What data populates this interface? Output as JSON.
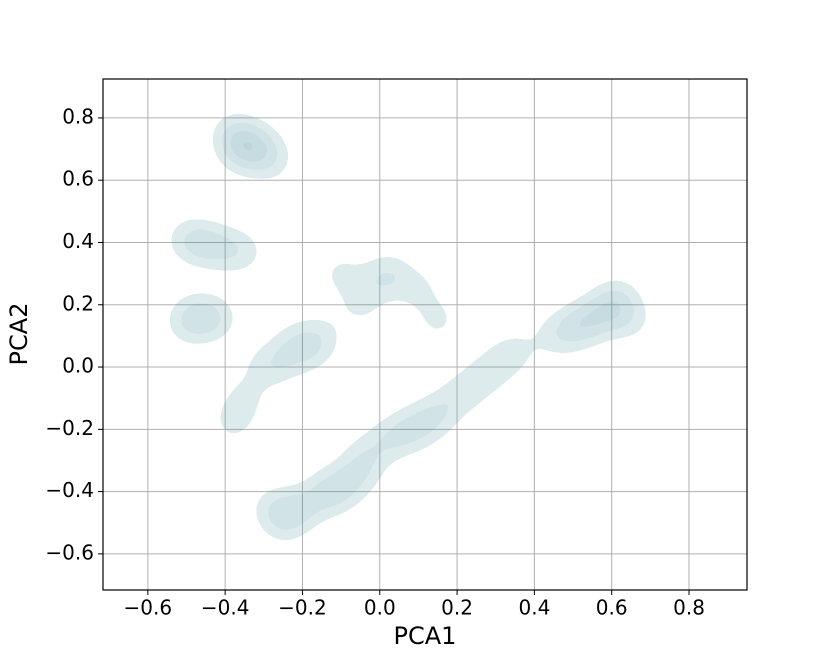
{
  "chart_data": {
    "type": "kde",
    "x_label": "PCA1",
    "y_label": "PCA2",
    "color": "#3f8a98",
    "grid": true,
    "xlim": [
      -0.716,
      0.95
    ],
    "ylim": [
      -0.716,
      0.925
    ],
    "xticks": [
      {
        "value": -0.6,
        "label": "−0.6"
      },
      {
        "value": -0.4,
        "label": "−0.4"
      },
      {
        "value": -0.2,
        "label": "−0.2"
      },
      {
        "value": 0,
        "label": "0.0"
      },
      0.2,
      0.4,
      0.6,
      0.8
    ],
    "yticks": [
      {
        "value": -0.6,
        "label": "−0.6"
      },
      {
        "value": -0.4,
        "label": "−0.4"
      },
      {
        "value": -0.2,
        "label": "−0.2"
      },
      {
        "value": 0,
        "label": "0.0"
      },
      0.2,
      0.4,
      0.6,
      0.8
    ],
    "x": [
      -0.37,
      -0.34,
      -0.33,
      -0.3,
      -0.38,
      -0.28,
      -0.36,
      -0.47,
      -0.44,
      -0.5,
      -0.4,
      -0.35,
      -0.48,
      -0.45,
      -0.42,
      -0.5,
      -0.22,
      -0.18,
      -0.15,
      -0.25,
      -0.35,
      -0.38,
      -0.3,
      0.0,
      0.03,
      0.1,
      -0.05,
      0.15,
      -0.1,
      0.05,
      0.08,
      0.12,
      0.0,
      0.15,
      0.2,
      0.25,
      -0.05,
      0.3,
      0.35,
      -0.23,
      -0.2,
      -0.15,
      -0.12,
      -0.25,
      -0.1,
      -0.28,
      -0.05,
      0.52,
      0.55,
      0.58,
      0.6,
      0.5,
      0.62,
      0.45,
      0.65
    ],
    "y": [
      0.73,
      0.71,
      0.72,
      0.7,
      0.75,
      0.66,
      0.68,
      0.4,
      0.39,
      0.41,
      0.38,
      0.37,
      0.17,
      0.15,
      0.16,
      0.14,
      0.08,
      0.05,
      0.1,
      0.02,
      -0.1,
      -0.18,
      0.0,
      0.28,
      0.3,
      0.25,
      0.2,
      0.15,
      0.3,
      -0.22,
      -0.2,
      -0.18,
      -0.25,
      -0.15,
      -0.1,
      -0.05,
      -0.3,
      0.0,
      0.05,
      -0.47,
      -0.45,
      -0.42,
      -0.38,
      -0.5,
      -0.4,
      -0.45,
      -0.35,
      0.14,
      0.15,
      0.17,
      0.2,
      0.12,
      0.22,
      0.1,
      0.15
    ]
  }
}
